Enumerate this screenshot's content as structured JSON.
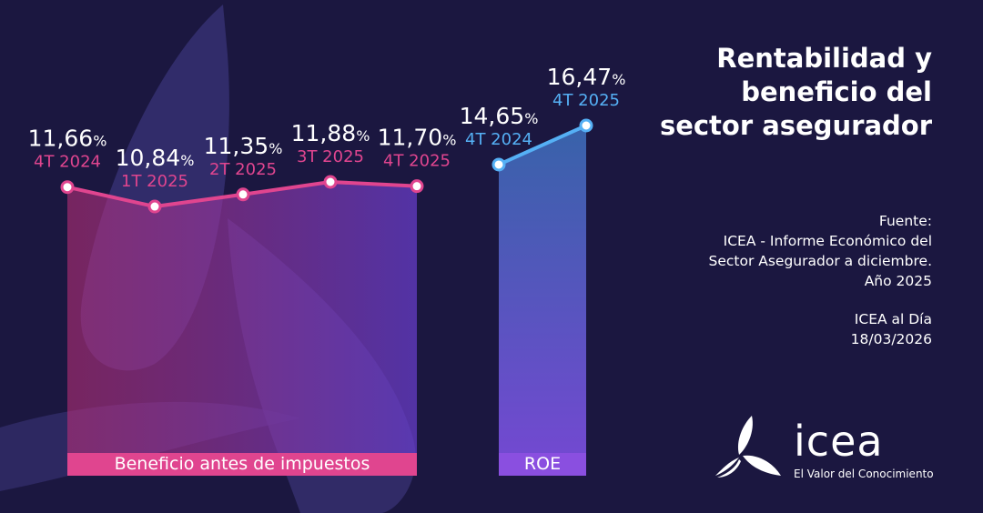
{
  "title": [
    "Rentabilidad y",
    "beneficio del",
    "sector asegurador"
  ],
  "source": [
    "Fuente:",
    "ICEA - Informe Económico del",
    "Sector Asegurador a diciembre.",
    "Año 2025"
  ],
  "issue": [
    "ICEA al Día",
    "18/03/2026"
  ],
  "logo": {
    "word": "icea",
    "tagline": "El Valor del Conocimiento"
  },
  "colors": {
    "background": "#1b1740",
    "beneficio": "#e0458f",
    "roe": "#55b0f5",
    "roe_label": "#8a4fe0"
  },
  "chart_data": [
    {
      "type": "line",
      "name": "Beneficio antes de impuestos",
      "categories": [
        "4T 2024",
        "1T 2025",
        "2T 2025",
        "3T 2025",
        "4T 2025"
      ],
      "values": [
        11.66,
        10.84,
        11.35,
        11.88,
        11.7
      ],
      "labels": [
        "11,66",
        "10,84",
        "11,35",
        "11,88",
        "11,70"
      ],
      "unit": "%"
    },
    {
      "type": "line",
      "name": "ROE",
      "categories": [
        "4T 2024",
        "4T 2025"
      ],
      "values": [
        14.65,
        16.47
      ],
      "labels": [
        "14,65",
        "16,47"
      ],
      "unit": "%"
    }
  ]
}
